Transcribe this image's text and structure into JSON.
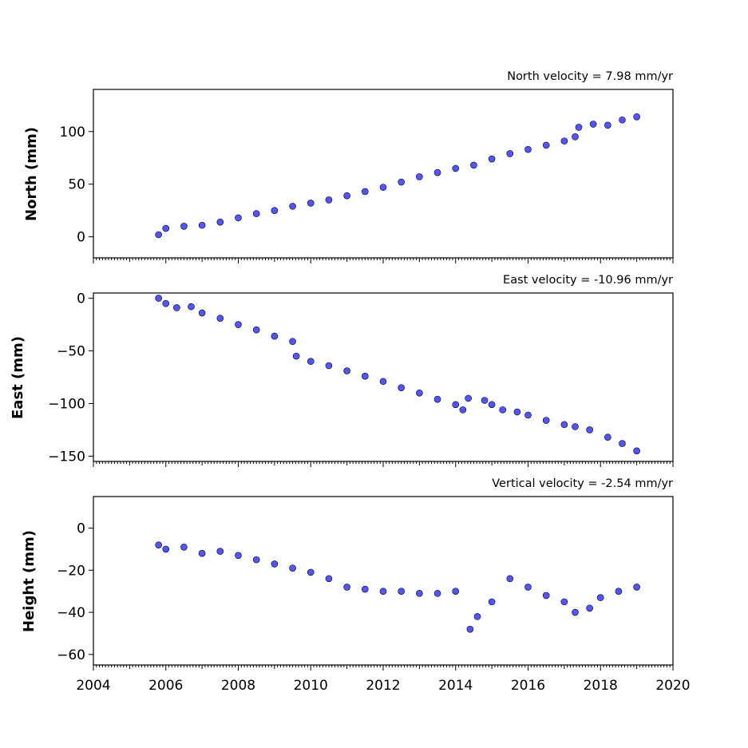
{
  "chart_data": [
    {
      "type": "scatter",
      "title": "North velocity = 7.98 mm/yr",
      "ylabel": "North (mm)",
      "xlim": [
        2004,
        2020
      ],
      "ylim": [
        -20,
        140
      ],
      "yticks": [
        0,
        50,
        100
      ],
      "x_tick_labels_shown": false,
      "marker_color": "#5555ff",
      "series": [
        {
          "x": [
            2005.8,
            2006.0,
            2006.5,
            2007.0,
            2007.5,
            2008.0,
            2008.5,
            2009.0,
            2009.5,
            2010.0,
            2010.5,
            2011.0,
            2011.5,
            2012.0,
            2012.5,
            2013.0,
            2013.5,
            2014.0,
            2014.5,
            2015.0,
            2015.5,
            2016.0,
            2016.5,
            2017.0,
            2017.3,
            2017.4,
            2017.8,
            2018.2,
            2018.6,
            2019.0
          ],
          "y": [
            2,
            8,
            10,
            11,
            14,
            18,
            22,
            25,
            29,
            32,
            35,
            39,
            43,
            47,
            52,
            57,
            61,
            65,
            68,
            74,
            79,
            83,
            87,
            91,
            95,
            104,
            107,
            106,
            111,
            114
          ]
        }
      ]
    },
    {
      "type": "scatter",
      "title": "East velocity = -10.96 mm/yr",
      "ylabel": "East (mm)",
      "xlim": [
        2004,
        2020
      ],
      "ylim": [
        -155,
        5
      ],
      "yticks": [
        0,
        -50,
        -100,
        -150
      ],
      "x_tick_labels_shown": false,
      "marker_color": "#5555ff",
      "series": [
        {
          "x": [
            2005.8,
            2006.0,
            2006.3,
            2006.7,
            2007.0,
            2007.5,
            2008.0,
            2008.5,
            2009.0,
            2009.5,
            2009.6,
            2010.0,
            2010.5,
            2011.0,
            2011.5,
            2012.0,
            2012.5,
            2013.0,
            2013.5,
            2014.0,
            2014.2,
            2014.35,
            2014.8,
            2015.0,
            2015.3,
            2015.7,
            2016.0,
            2016.5,
            2017.0,
            2017.3,
            2017.7,
            2018.2,
            2018.6,
            2019.0
          ],
          "y": [
            0,
            -5,
            -9,
            -8,
            -14,
            -19,
            -25,
            -30,
            -36,
            -41,
            -55,
            -60,
            -64,
            -69,
            -74,
            -79,
            -85,
            -90,
            -96,
            -101,
            -106,
            -95,
            -97,
            -101,
            -106,
            -108,
            -111,
            -116,
            -120,
            -122,
            -125,
            -132,
            -138,
            -145
          ]
        }
      ]
    },
    {
      "type": "scatter",
      "title": "Vertical velocity = -2.54 mm/yr",
      "ylabel": "Height (mm)",
      "xlim": [
        2004,
        2020
      ],
      "ylim": [
        -65,
        15
      ],
      "yticks": [
        0,
        -20,
        -40,
        -60
      ],
      "xticks": [
        2004,
        2006,
        2008,
        2010,
        2012,
        2014,
        2016,
        2018,
        2020
      ],
      "x_tick_labels_shown": true,
      "marker_color": "#5555ff",
      "series": [
        {
          "x": [
            2005.8,
            2006.0,
            2006.5,
            2007.0,
            2007.5,
            2008.0,
            2008.5,
            2009.0,
            2009.5,
            2010.0,
            2010.5,
            2011.0,
            2011.5,
            2012.0,
            2012.5,
            2013.0,
            2013.5,
            2014.0,
            2014.4,
            2014.6,
            2015.0,
            2015.5,
            2016.0,
            2016.5,
            2017.0,
            2017.3,
            2017.7,
            2018.0,
            2018.5,
            2019.0
          ],
          "y": [
            -8,
            -10,
            -9,
            -12,
            -11,
            -13,
            -15,
            -17,
            -19,
            -21,
            -24,
            -28,
            -29,
            -30,
            -30,
            -31,
            -31,
            -30,
            -48,
            -42,
            -35,
            -24,
            -28,
            -32,
            -35,
            -40,
            -38,
            -33,
            -30,
            -28
          ]
        }
      ]
    }
  ]
}
